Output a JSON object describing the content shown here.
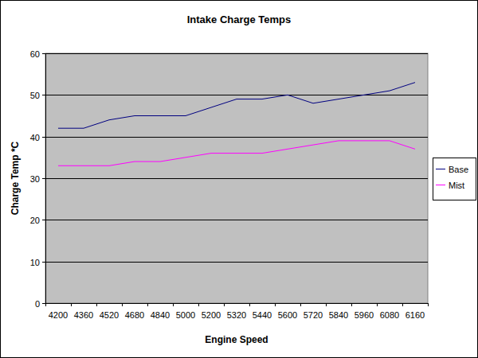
{
  "chart_data": {
    "type": "line",
    "title": "Intake Charge Temps",
    "x_label": "Engine Speed",
    "y_label": "Charge Temp *C",
    "categories": [
      "4200",
      "4360",
      "4520",
      "4680",
      "4840",
      "5000",
      "5200",
      "5320",
      "5440",
      "5600",
      "5720",
      "5840",
      "5960",
      "6080",
      "6160"
    ],
    "series": [
      {
        "name": "Base",
        "color": "#000080",
        "values": [
          42,
          42,
          44,
          45,
          45,
          45,
          47,
          49,
          49,
          50,
          48,
          49,
          50,
          51,
          53
        ]
      },
      {
        "name": "Mist",
        "color": "#ff00ff",
        "values": [
          33,
          33,
          33,
          34,
          34,
          35,
          36,
          36,
          36,
          37,
          38,
          39,
          39,
          39,
          37
        ]
      }
    ],
    "ylim": [
      0,
      60
    ],
    "yticks": [
      0,
      10,
      20,
      30,
      40,
      50,
      60
    ],
    "grid": true,
    "legend": "right"
  }
}
